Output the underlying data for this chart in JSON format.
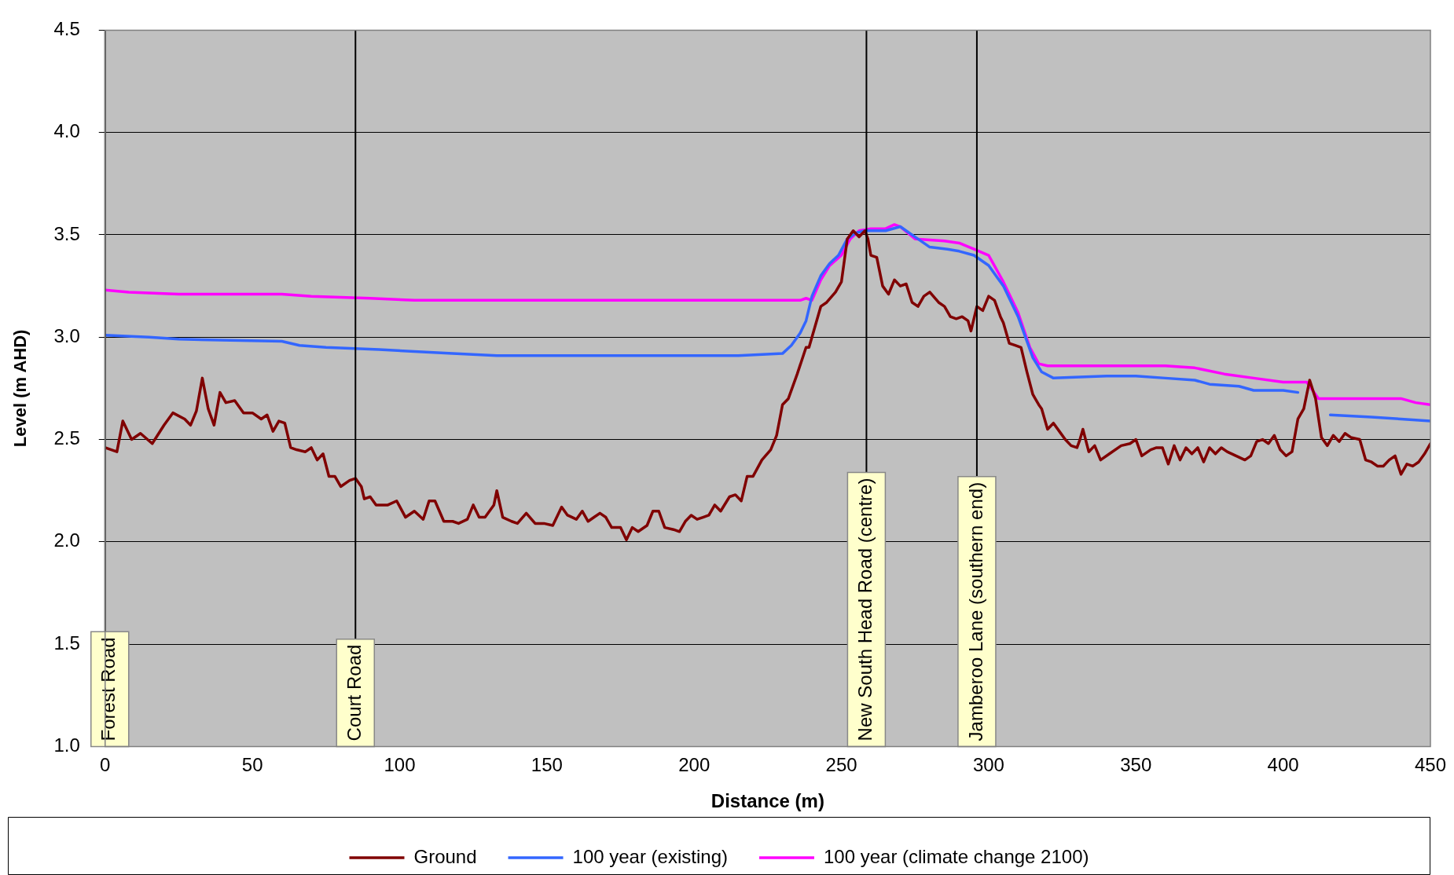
{
  "chart_data": {
    "type": "line",
    "xlabel": "Distance (m)",
    "ylabel": "Level (m AHD)",
    "xlim": [
      0,
      450
    ],
    "xticks": [
      0,
      50,
      100,
      150,
      200,
      250,
      300,
      350,
      400,
      450
    ],
    "ylim": [
      1.0,
      4.5
    ],
    "yticks": [
      {
        "value": 1.0,
        "label": "1.0"
      },
      {
        "value": 1.5,
        "label": "1.5"
      },
      {
        "value": 2.0,
        "label": "2.0"
      },
      {
        "value": 2.5,
        "label": "2.5"
      },
      {
        "value": 3.0,
        "label": "3.0"
      },
      {
        "value": 3.5,
        "label": "3.5"
      },
      {
        "value": 4.0,
        "label": "4.0"
      },
      {
        "value": 4.5,
        "label": "4.5"
      }
    ],
    "grid": "y",
    "legend": "bottom",
    "marker": "none",
    "line_style": "solid",
    "ref_lines": [
      {
        "axis": "x",
        "value": 0,
        "label": "Forest Road",
        "color": "#000000"
      },
      {
        "axis": "x",
        "value": 85,
        "label": "Court Road",
        "color": "#000000"
      },
      {
        "axis": "x",
        "value": 258.5,
        "label": "New South Head Road (centre)",
        "color": "#000000"
      },
      {
        "axis": "x",
        "value": 296,
        "label": "Jamberoo Lane (southern end)",
        "color": "#000000"
      }
    ],
    "series": [
      {
        "name": "Ground",
        "color": "#800000",
        "x": [
          0,
          4,
          6,
          9,
          12,
          16,
          20,
          23,
          27,
          29,
          31,
          33,
          35,
          37,
          39,
          41,
          44,
          47,
          50,
          53,
          55,
          57,
          59,
          61,
          63,
          65,
          68,
          70,
          72,
          74,
          76,
          78,
          80,
          83,
          85,
          87,
          88,
          90,
          92,
          96,
          99,
          102,
          105,
          108,
          110,
          112,
          115,
          118,
          120,
          123,
          125,
          127,
          129,
          132,
          133,
          135,
          138,
          140,
          143,
          146,
          149,
          152,
          155,
          157,
          160,
          162,
          164,
          166,
          168,
          170,
          172,
          175,
          177,
          179,
          181,
          184,
          186,
          188,
          190,
          193,
          195,
          197,
          199,
          201,
          203,
          205,
          207,
          209,
          212,
          214,
          216,
          218,
          220,
          223,
          226,
          228,
          230,
          232,
          235,
          238,
          239,
          241,
          243,
          245,
          248,
          250,
          252,
          254,
          256,
          258,
          259,
          260,
          262,
          264,
          266,
          268,
          270,
          272,
          274,
          276,
          278,
          280,
          283,
          285,
          287,
          289,
          291,
          293,
          294,
          296,
          298,
          300,
          302,
          304,
          305,
          307,
          309,
          311,
          313,
          315,
          317,
          318,
          320,
          322,
          324,
          326,
          328,
          330,
          331,
          332,
          334,
          336,
          338,
          341,
          345,
          348,
          350,
          352,
          355,
          357,
          359,
          361,
          363,
          365,
          367,
          369,
          371,
          373,
          375,
          377,
          379,
          381,
          384,
          387,
          389,
          391,
          393,
          395,
          397,
          399,
          401,
          403,
          405,
          407,
          409,
          411,
          413,
          415,
          417,
          419,
          421,
          423,
          426,
          428,
          430,
          432,
          434,
          436,
          438,
          440,
          442,
          444,
          446,
          448,
          450
        ],
        "values": [
          2.46,
          2.44,
          2.59,
          2.5,
          2.53,
          2.48,
          2.57,
          2.63,
          2.6,
          2.57,
          2.64,
          2.8,
          2.65,
          2.57,
          2.73,
          2.68,
          2.69,
          2.63,
          2.63,
          2.6,
          2.62,
          2.54,
          2.59,
          2.58,
          2.46,
          2.45,
          2.44,
          2.46,
          2.4,
          2.43,
          2.32,
          2.32,
          2.27,
          2.3,
          2.31,
          2.27,
          2.21,
          2.22,
          2.18,
          2.18,
          2.2,
          2.12,
          2.15,
          2.11,
          2.2,
          2.2,
          2.1,
          2.1,
          2.09,
          2.11,
          2.18,
          2.12,
          2.12,
          2.18,
          2.25,
          2.12,
          2.1,
          2.09,
          2.14,
          2.09,
          2.09,
          2.08,
          2.17,
          2.13,
          2.11,
          2.15,
          2.1,
          2.12,
          2.14,
          2.12,
          2.07,
          2.07,
          2.01,
          2.07,
          2.05,
          2.08,
          2.15,
          2.15,
          2.07,
          2.06,
          2.05,
          2.1,
          2.13,
          2.11,
          2.12,
          2.13,
          2.18,
          2.15,
          2.22,
          2.23,
          2.2,
          2.32,
          2.32,
          2.4,
          2.45,
          2.52,
          2.67,
          2.7,
          2.82,
          2.95,
          2.95,
          3.05,
          3.15,
          3.17,
          3.22,
          3.27,
          3.48,
          3.52,
          3.49,
          3.52,
          3.48,
          3.4,
          3.39,
          3.25,
          3.21,
          3.28,
          3.25,
          3.26,
          3.17,
          3.15,
          3.2,
          3.22,
          3.17,
          3.15,
          3.1,
          3.09,
          3.1,
          3.08,
          3.03,
          3.15,
          3.13,
          3.2,
          3.18,
          3.1,
          3.07,
          2.97,
          2.96,
          2.95,
          2.83,
          2.72,
          2.67,
          2.65,
          2.55,
          2.58,
          2.54,
          2.5,
          2.47,
          2.46,
          2.5,
          2.55,
          2.44,
          2.47,
          2.4,
          2.43,
          2.47,
          2.48,
          2.5,
          2.42,
          2.45,
          2.46,
          2.46,
          2.38,
          2.47,
          2.4,
          2.46,
          2.43,
          2.46,
          2.39,
          2.46,
          2.43,
          2.46,
          2.44,
          2.42,
          2.4,
          2.42,
          2.49,
          2.5,
          2.48,
          2.52,
          2.45,
          2.42,
          2.44,
          2.6,
          2.65,
          2.79,
          2.7,
          2.51,
          2.47,
          2.52,
          2.49,
          2.53,
          2.51,
          2.5,
          2.4,
          2.39,
          2.37,
          2.37,
          2.4,
          2.42,
          2.33,
          2.38,
          2.37,
          2.39,
          2.43,
          2.48
        ]
      },
      {
        "name": "100 year (existing)",
        "color": "#3366ff",
        "x": [
          0,
          15,
          25,
          60,
          66,
          75,
          93,
          105,
          118,
          133,
          215,
          230,
          233,
          236,
          238,
          240,
          243,
          246,
          249,
          252,
          255,
          258,
          265,
          270,
          275,
          280,
          286,
          290,
          295,
          300,
          305,
          310,
          315,
          318,
          322,
          340,
          350,
          360,
          370,
          375,
          385,
          390,
          400,
          405,
          410,
          416,
          430,
          440,
          450
        ],
        "values": [
          3.01,
          3.0,
          2.99,
          2.98,
          2.96,
          2.95,
          2.94,
          2.93,
          2.92,
          2.91,
          2.91,
          2.92,
          2.96,
          3.02,
          3.08,
          3.2,
          3.3,
          3.36,
          3.4,
          3.48,
          3.51,
          3.52,
          3.52,
          3.54,
          3.49,
          3.44,
          3.43,
          3.42,
          3.4,
          3.35,
          3.25,
          3.1,
          2.9,
          2.83,
          2.8,
          2.81,
          2.81,
          2.8,
          2.79,
          2.77,
          2.76,
          2.74,
          2.74,
          2.73,
          null,
          2.62,
          2.61,
          2.6,
          2.59
        ]
      },
      {
        "name": "100 year (climate change 2100)",
        "color": "#ff00ff",
        "x": [
          0,
          8,
          25,
          60,
          70,
          90,
          105,
          132,
          236,
          238,
          240,
          243,
          246,
          250,
          253,
          256,
          260,
          265,
          268,
          270,
          275,
          285,
          290,
          295,
          300,
          305,
          310,
          314,
          317,
          320,
          330,
          360,
          370,
          380,
          390,
          400,
          408,
          412,
          440,
          445,
          450
        ],
        "values": [
          3.23,
          3.22,
          3.21,
          3.21,
          3.2,
          3.19,
          3.18,
          3.18,
          3.18,
          3.19,
          3.18,
          3.28,
          3.35,
          3.4,
          3.48,
          3.52,
          3.53,
          3.53,
          3.55,
          3.54,
          3.48,
          3.47,
          3.46,
          3.43,
          3.4,
          3.27,
          3.12,
          2.95,
          2.87,
          2.86,
          2.86,
          2.86,
          2.85,
          2.82,
          2.8,
          2.78,
          2.78,
          2.7,
          2.7,
          2.68,
          2.67
        ]
      }
    ]
  }
}
